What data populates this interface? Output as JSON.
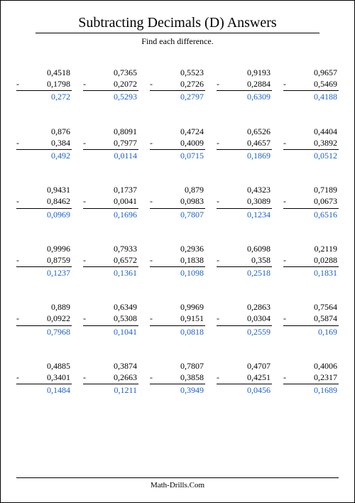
{
  "title": "Subtracting Decimals (D) Answers",
  "subtitle": "Find each difference.",
  "footer": "Math-Drills.Com",
  "colors": {
    "answer": "#1860c8",
    "text": "#000000",
    "background": "#ffffff"
  },
  "problems": [
    [
      {
        "a": "0,4518",
        "b": "0,1798",
        "ans": "0,272"
      },
      {
        "a": "0,7365",
        "b": "0,2072",
        "ans": "0,5293"
      },
      {
        "a": "0,5523",
        "b": "0,2726",
        "ans": "0,2797"
      },
      {
        "a": "0,9193",
        "b": "0,2884",
        "ans": "0,6309"
      },
      {
        "a": "0,9657",
        "b": "0,5469",
        "ans": "0,4188"
      }
    ],
    [
      {
        "a": "0,876",
        "b": "0,384",
        "ans": "0,492"
      },
      {
        "a": "0,8091",
        "b": "0,7977",
        "ans": "0,0114"
      },
      {
        "a": "0,4724",
        "b": "0,4009",
        "ans": "0,0715"
      },
      {
        "a": "0,6526",
        "b": "0,4657",
        "ans": "0,1869"
      },
      {
        "a": "0,4404",
        "b": "0,3892",
        "ans": "0,0512"
      }
    ],
    [
      {
        "a": "0,9431",
        "b": "0,8462",
        "ans": "0,0969"
      },
      {
        "a": "0,1737",
        "b": "0,0041",
        "ans": "0,1696"
      },
      {
        "a": "0,879",
        "b": "0,0983",
        "ans": "0,7807"
      },
      {
        "a": "0,4323",
        "b": "0,3089",
        "ans": "0,1234"
      },
      {
        "a": "0,7189",
        "b": "0,0673",
        "ans": "0,6516"
      }
    ],
    [
      {
        "a": "0,9996",
        "b": "0,8759",
        "ans": "0,1237"
      },
      {
        "a": "0,7933",
        "b": "0,6572",
        "ans": "0,1361"
      },
      {
        "a": "0,2936",
        "b": "0,1838",
        "ans": "0,1098"
      },
      {
        "a": "0,6098",
        "b": "0,358",
        "ans": "0,2518"
      },
      {
        "a": "0,2119",
        "b": "0,0288",
        "ans": "0,1831"
      }
    ],
    [
      {
        "a": "0,889",
        "b": "0,0922",
        "ans": "0,7968"
      },
      {
        "a": "0,6349",
        "b": "0,5308",
        "ans": "0,1041"
      },
      {
        "a": "0,9969",
        "b": "0,9151",
        "ans": "0,0818"
      },
      {
        "a": "0,2863",
        "b": "0,0304",
        "ans": "0,2559"
      },
      {
        "a": "0,7564",
        "b": "0,5874",
        "ans": "0,169"
      }
    ],
    [
      {
        "a": "0,4885",
        "b": "0,3401",
        "ans": "0,1484"
      },
      {
        "a": "0,3874",
        "b": "0,2663",
        "ans": "0,1211"
      },
      {
        "a": "0,7807",
        "b": "0,3858",
        "ans": "0,3949"
      },
      {
        "a": "0,4707",
        "b": "0,4251",
        "ans": "0,0456"
      },
      {
        "a": "0,4006",
        "b": "0,2317",
        "ans": "0,1689"
      }
    ]
  ]
}
